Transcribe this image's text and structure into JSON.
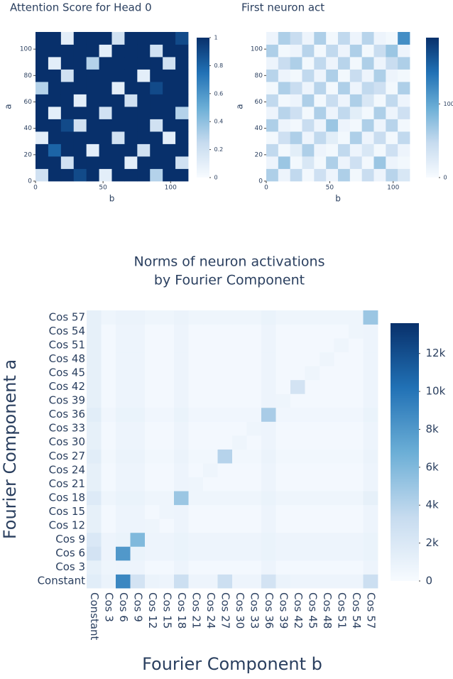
{
  "chart_data": [
    {
      "type": "heatmap",
      "title": "Attention Score for Head 0",
      "xlabel": "b",
      "ylabel": "a",
      "xlim": [
        0,
        113
      ],
      "ylim": [
        0,
        113
      ],
      "xticks": [
        0,
        50,
        100
      ],
      "yticks": [
        0,
        20,
        40,
        60,
        80,
        100
      ],
      "zlim": [
        0,
        1
      ],
      "zticks": [
        0,
        0.2,
        0.4,
        0.6,
        0.8,
        1
      ],
      "colorscale": [
        "#f7fbff",
        "#c6dbef",
        "#6baed6",
        "#2171b5",
        "#08306b"
      ],
      "values": [
        [
          0.2,
          1,
          1,
          0.9,
          1,
          0.1,
          1,
          1,
          1,
          0.3,
          1,
          1
        ],
        [
          1,
          1,
          0.2,
          1,
          1,
          1,
          1,
          0.1,
          1,
          1,
          1,
          0.2
        ],
        [
          1,
          0.8,
          1,
          1,
          0.1,
          1,
          1,
          1,
          0.2,
          1,
          1,
          1
        ],
        [
          0.1,
          1,
          1,
          1,
          1,
          1,
          0.2,
          1,
          1,
          1,
          0.1,
          1
        ],
        [
          1,
          1,
          0.9,
          0.2,
          1,
          1,
          1,
          1,
          1,
          0.2,
          1,
          1
        ],
        [
          1,
          0.1,
          1,
          1,
          1,
          0.2,
          1,
          1,
          1,
          1,
          1,
          0.3
        ],
        [
          1,
          1,
          1,
          0.1,
          1,
          1,
          1,
          0.2,
          1,
          1,
          1,
          1
        ],
        [
          0.3,
          1,
          1,
          1,
          1,
          1,
          0.1,
          1,
          1,
          0.9,
          1,
          1
        ],
        [
          1,
          1,
          0.2,
          1,
          1,
          1,
          1,
          1,
          0.1,
          1,
          1,
          1
        ],
        [
          1,
          0.1,
          1,
          1,
          0.3,
          1,
          1,
          1,
          1,
          1,
          0.2,
          1
        ],
        [
          1,
          1,
          1,
          1,
          1,
          0.1,
          1,
          1,
          1,
          0.2,
          1,
          1
        ],
        [
          1,
          1,
          0.1,
          1,
          1,
          1,
          0.2,
          1,
          1,
          1,
          1,
          0.9
        ]
      ]
    },
    {
      "type": "heatmap",
      "title": "First neuron act",
      "xlabel": "b",
      "ylabel": "a",
      "xlim": [
        0,
        113
      ],
      "ylim": [
        0,
        113
      ],
      "xticks": [
        0,
        50,
        100
      ],
      "yticks": [
        0,
        20,
        40,
        60,
        80,
        100
      ],
      "zlim": [
        0,
        190
      ],
      "zticks": [
        0,
        100
      ],
      "colorscale": [
        "#f7fbff",
        "#c6dbef",
        "#6baed6",
        "#2171b5",
        "#08306b"
      ],
      "values": [
        [
          60,
          10,
          50,
          5,
          40,
          10,
          60,
          5,
          45,
          10,
          55,
          30
        ],
        [
          10,
          70,
          5,
          30,
          5,
          60,
          10,
          40,
          5,
          70,
          10,
          5
        ],
        [
          50,
          5,
          20,
          60,
          10,
          5,
          50,
          10,
          30,
          5,
          40,
          10
        ],
        [
          5,
          40,
          60,
          10,
          50,
          20,
          5,
          60,
          10,
          45,
          5,
          50
        ],
        [
          60,
          10,
          5,
          45,
          10,
          70,
          10,
          5,
          60,
          10,
          55,
          5
        ],
        [
          10,
          55,
          40,
          5,
          60,
          10,
          50,
          20,
          5,
          60,
          10,
          40
        ],
        [
          50,
          5,
          10,
          60,
          5,
          45,
          10,
          60,
          30,
          5,
          50,
          10
        ],
        [
          5,
          60,
          45,
          10,
          55,
          5,
          60,
          10,
          50,
          40,
          5,
          60
        ],
        [
          55,
          10,
          5,
          50,
          10,
          60,
          5,
          45,
          10,
          60,
          10,
          5
        ],
        [
          10,
          45,
          60,
          5,
          50,
          10,
          55,
          5,
          60,
          10,
          45,
          60
        ],
        [
          60,
          5,
          10,
          55,
          5,
          50,
          10,
          60,
          5,
          45,
          70,
          10
        ],
        [
          10,
          60,
          45,
          10,
          60,
          5,
          50,
          10,
          55,
          10,
          5,
          120
        ]
      ]
    },
    {
      "type": "heatmap",
      "title": [
        "Norms of neuron activations",
        "by Fourier Component"
      ],
      "xlabel": "Fourier Component b",
      "ylabel": "Fourier Component a",
      "xcategories": [
        "Constant",
        "Cos 3",
        "Cos 6",
        "Cos 9",
        "Cos 12",
        "Cos 15",
        "Cos 18",
        "Cos 21",
        "Cos 24",
        "Cos 27",
        "Cos 30",
        "Cos 33",
        "Cos 36",
        "Cos 39",
        "Cos 42",
        "Cos 45",
        "Cos 48",
        "Cos 51",
        "Cos 54",
        "Cos 57"
      ],
      "ycategories": [
        "Constant",
        "Cos 3",
        "Cos 6",
        "Cos 9",
        "Cos 12",
        "Cos 15",
        "Cos 18",
        "Cos 21",
        "Cos 24",
        "Cos 27",
        "Cos 30",
        "Cos 33",
        "Cos 36",
        "Cos 39",
        "Cos 42",
        "Cos 45",
        "Cos 48",
        "Cos 51",
        "Cos 54",
        "Cos 57"
      ],
      "zlim": [
        0,
        13600
      ],
      "zticks": [
        0,
        {
          "value": 2000,
          "label": "2k"
        },
        {
          "value": 4000,
          "label": "4k"
        },
        {
          "value": 6000,
          "label": "6k"
        },
        {
          "value": 8000,
          "label": "8k"
        },
        {
          "value": 10000,
          "label": "10k"
        },
        {
          "value": 12000,
          "label": "12k"
        }
      ],
      "colorscale": [
        "#f7fbff",
        "#c6dbef",
        "#6baed6",
        "#2171b5",
        "#08306b"
      ],
      "values": [
        [
          1500,
          800,
          9000,
          2500,
          800,
          700,
          3000,
          700,
          700,
          3000,
          700,
          700,
          2500,
          800,
          700,
          700,
          700,
          700,
          700,
          3000
        ],
        [
          1200,
          600,
          700,
          700,
          300,
          300,
          700,
          300,
          300,
          300,
          300,
          300,
          700,
          300,
          300,
          300,
          300,
          300,
          300,
          700
        ],
        [
          2500,
          700,
          8000,
          900,
          700,
          700,
          900,
          700,
          700,
          700,
          700,
          700,
          900,
          700,
          700,
          700,
          700,
          700,
          700,
          900
        ],
        [
          2000,
          700,
          900,
          6000,
          700,
          700,
          900,
          700,
          700,
          700,
          700,
          700,
          900,
          700,
          700,
          700,
          700,
          700,
          700,
          900
        ],
        [
          1200,
          300,
          700,
          700,
          600,
          300,
          700,
          300,
          300,
          300,
          300,
          300,
          700,
          300,
          300,
          300,
          300,
          300,
          300,
          700
        ],
        [
          1200,
          300,
          700,
          700,
          300,
          600,
          700,
          300,
          300,
          300,
          300,
          300,
          700,
          300,
          300,
          300,
          300,
          300,
          300,
          700
        ],
        [
          1800,
          600,
          900,
          900,
          600,
          600,
          5000,
          600,
          600,
          600,
          600,
          600,
          900,
          600,
          600,
          600,
          600,
          600,
          600,
          1200
        ],
        [
          1200,
          300,
          700,
          700,
          300,
          300,
          700,
          600,
          300,
          300,
          300,
          300,
          700,
          300,
          300,
          300,
          300,
          300,
          300,
          700
        ],
        [
          1200,
          300,
          700,
          700,
          300,
          300,
          700,
          300,
          600,
          300,
          300,
          300,
          700,
          300,
          300,
          300,
          300,
          300,
          300,
          700
        ],
        [
          1500,
          400,
          800,
          800,
          400,
          400,
          800,
          400,
          400,
          4000,
          400,
          400,
          800,
          400,
          400,
          400,
          400,
          400,
          400,
          800
        ],
        [
          1200,
          300,
          700,
          700,
          300,
          300,
          700,
          300,
          300,
          300,
          600,
          300,
          700,
          300,
          300,
          300,
          300,
          300,
          300,
          700
        ],
        [
          1200,
          300,
          700,
          700,
          300,
          300,
          700,
          300,
          300,
          300,
          300,
          600,
          700,
          300,
          300,
          300,
          300,
          300,
          300,
          700
        ],
        [
          1500,
          500,
          900,
          900,
          500,
          500,
          900,
          500,
          500,
          500,
          500,
          500,
          4500,
          500,
          500,
          500,
          500,
          500,
          500,
          900
        ],
        [
          1200,
          300,
          700,
          700,
          300,
          300,
          700,
          300,
          300,
          300,
          300,
          300,
          700,
          600,
          300,
          300,
          300,
          300,
          300,
          700
        ],
        [
          1200,
          300,
          700,
          700,
          300,
          300,
          700,
          300,
          300,
          300,
          300,
          300,
          700,
          300,
          2500,
          300,
          300,
          300,
          300,
          700
        ],
        [
          1200,
          300,
          700,
          700,
          300,
          300,
          700,
          300,
          300,
          300,
          300,
          300,
          700,
          300,
          300,
          600,
          300,
          300,
          300,
          700
        ],
        [
          1200,
          300,
          700,
          700,
          300,
          300,
          700,
          300,
          300,
          300,
          300,
          300,
          700,
          300,
          300,
          300,
          600,
          300,
          300,
          700
        ],
        [
          1200,
          300,
          700,
          700,
          300,
          300,
          700,
          300,
          300,
          300,
          300,
          300,
          700,
          300,
          300,
          300,
          300,
          600,
          300,
          700
        ],
        [
          1200,
          300,
          700,
          700,
          300,
          300,
          700,
          300,
          300,
          300,
          300,
          300,
          700,
          300,
          300,
          300,
          300,
          300,
          600,
          700
        ],
        [
          1200,
          600,
          800,
          800,
          600,
          600,
          800,
          600,
          600,
          600,
          600,
          600,
          900,
          600,
          600,
          600,
          600,
          600,
          600,
          5000
        ]
      ]
    }
  ]
}
